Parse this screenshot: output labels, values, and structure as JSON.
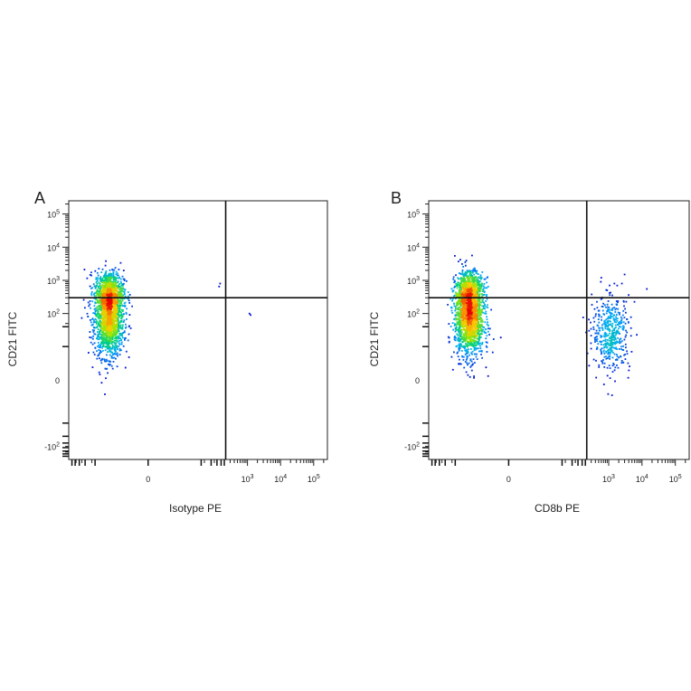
{
  "chart_data": [
    {
      "type": "scatter",
      "panel_label": "A",
      "xlabel": "Isotype PE",
      "ylabel": "CD21 FITC",
      "x_ticks": [
        {
          "label": "0",
          "value": 0
        },
        {
          "label": "10",
          "exp": "3",
          "value": 1000
        },
        {
          "label": "10",
          "exp": "4",
          "value": 10000
        },
        {
          "label": "10",
          "exp": "5",
          "value": 100000
        }
      ],
      "y_ticks": [
        {
          "label": "-10",
          "exp": "2",
          "value": -100
        },
        {
          "label": "0",
          "value": 0
        },
        {
          "label": "10",
          "exp": "2",
          "value": 100
        },
        {
          "label": "10",
          "exp": "3",
          "value": 1000
        },
        {
          "label": "10",
          "exp": "4",
          "value": 10000
        },
        {
          "label": "10",
          "exp": "5",
          "value": 100000
        }
      ],
      "quadrant_gate": {
        "x": 220,
        "y": 300
      },
      "colormap": "pseudocolor density (blue-cyan-green-yellow-red)",
      "populations": [
        {
          "x": -15,
          "y": 60,
          "count": 1400
        },
        {
          "x": -15,
          "y": 450,
          "count": 700
        }
      ],
      "extra_points": [
        {
          "x": 1150,
          "y": 100
        },
        {
          "x": 1250,
          "y": 90
        },
        {
          "x": 150,
          "y": 800
        },
        {
          "x": 140,
          "y": 650
        }
      ]
    },
    {
      "type": "scatter",
      "panel_label": "B",
      "xlabel": "CD8b PE",
      "ylabel": "CD21 FITC",
      "x_ticks": [
        {
          "label": "0",
          "value": 0
        },
        {
          "label": "10",
          "exp": "3",
          "value": 1000
        },
        {
          "label": "10",
          "exp": "4",
          "value": 10000
        },
        {
          "label": "10",
          "exp": "5",
          "value": 100000
        }
      ],
      "y_ticks": [
        {
          "label": "-10",
          "exp": "2",
          "value": -100
        },
        {
          "label": "0",
          "value": 0
        },
        {
          "label": "10",
          "exp": "2",
          "value": 100
        },
        {
          "label": "10",
          "exp": "3",
          "value": 1000
        },
        {
          "label": "10",
          "exp": "4",
          "value": 10000
        },
        {
          "label": "10",
          "exp": "5",
          "value": 100000
        }
      ],
      "quadrant_gate": {
        "x": 220,
        "y": 300
      },
      "colormap": "pseudocolor density (blue-cyan-green-yellow-red)",
      "populations": [
        {
          "x": -15,
          "y": 60,
          "count": 1400
        },
        {
          "x": -15,
          "y": 450,
          "count": 700
        },
        {
          "x": 1200,
          "y": 25,
          "count": 450
        }
      ],
      "extra_points": [
        {
          "x": 14000,
          "y": 550
        },
        {
          "x": 3000,
          "y": 1500
        },
        {
          "x": 2500,
          "y": 800
        },
        {
          "x": 600,
          "y": 1200
        },
        {
          "x": 900,
          "y": 500
        },
        {
          "x": 1800,
          "y": 700
        }
      ]
    }
  ]
}
